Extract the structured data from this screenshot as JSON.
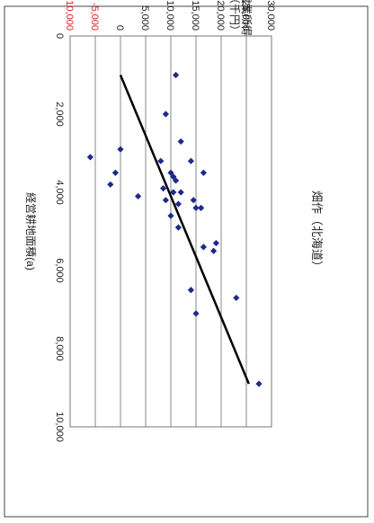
{
  "chart_data": {
    "type": "scatter",
    "title": "畑作（北海道）",
    "xlabel": "経営耕地面積(a)",
    "ylabel": "農業所得\n（千円）",
    "x_ticks": [
      "0",
      "2,000",
      "4,000",
      "6,000",
      "8,000",
      "10,000"
    ],
    "x_tick_values": [
      0,
      2000,
      4000,
      6000,
      8000,
      10000
    ],
    "y_ticks": [
      "30,000",
      "25,000",
      "20,000",
      "15,000",
      "10,000",
      "5,000",
      "0",
      "-5,000",
      "-10,000"
    ],
    "y_tick_values": [
      30000,
      25000,
      20000,
      15000,
      10000,
      5000,
      0,
      -5000,
      -10000
    ],
    "negative_tick_color": "#e02020",
    "xlim": [
      0,
      10000
    ],
    "ylim": [
      -10000,
      30000
    ],
    "grid": true,
    "series": [
      {
        "marker_color": "#1e2a8a",
        "points": [
          {
            "x": 8900,
            "y": 27500
          },
          {
            "x": 6700,
            "y": 23000
          },
          {
            "x": 7100,
            "y": 15000
          },
          {
            "x": 6500,
            "y": 14000
          },
          {
            "x": 5500,
            "y": 18500
          },
          {
            "x": 5400,
            "y": 16500
          },
          {
            "x": 5300,
            "y": 19000
          },
          {
            "x": 4900,
            "y": 11500
          },
          {
            "x": 4600,
            "y": 10000
          },
          {
            "x": 4400,
            "y": 16000
          },
          {
            "x": 4400,
            "y": 15000
          },
          {
            "x": 4300,
            "y": 11500
          },
          {
            "x": 4200,
            "y": 14500
          },
          {
            "x": 4200,
            "y": 9000
          },
          {
            "x": 4100,
            "y": 3500
          },
          {
            "x": 4000,
            "y": 10500
          },
          {
            "x": 4000,
            "y": 12000
          },
          {
            "x": 3900,
            "y": 8500
          },
          {
            "x": 3800,
            "y": -2000
          },
          {
            "x": 3700,
            "y": 11000
          },
          {
            "x": 3600,
            "y": 10500
          },
          {
            "x": 3500,
            "y": 16500
          },
          {
            "x": 3500,
            "y": 10000
          },
          {
            "x": 3500,
            "y": -1000
          },
          {
            "x": 3200,
            "y": 14000
          },
          {
            "x": 3200,
            "y": 8000
          },
          {
            "x": 3100,
            "y": -6000
          },
          {
            "x": 2900,
            "y": 0
          },
          {
            "x": 2700,
            "y": 12000
          },
          {
            "x": 2000,
            "y": 9000
          },
          {
            "x": 1000,
            "y": 11000
          }
        ]
      }
    ],
    "trendline": {
      "x": [
        1000,
        8900
      ],
      "y": [
        0,
        25500
      ],
      "color": "#000000"
    }
  }
}
